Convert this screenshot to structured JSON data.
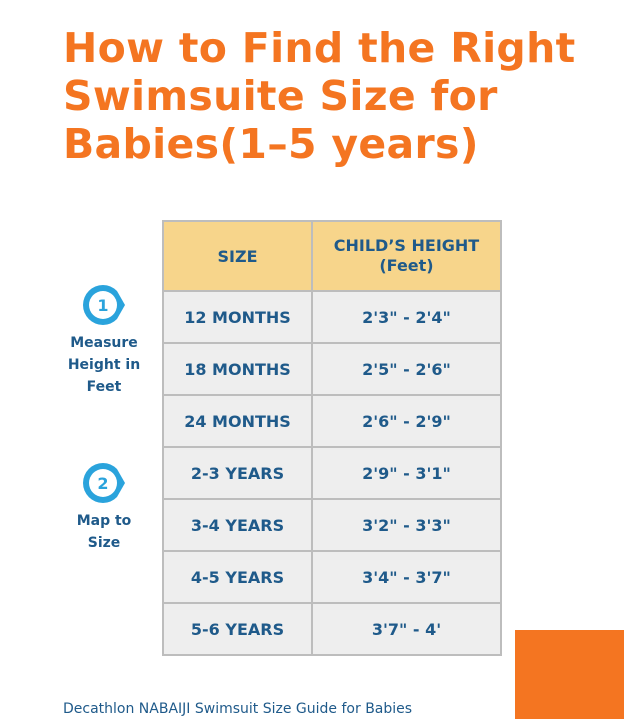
{
  "header": {
    "title_lines": [
      "How to Find the Right",
      "Swimsuite Size for",
      "Babies(1–5 years)"
    ]
  },
  "steps": [
    {
      "number": "1",
      "label": "Measure Height in Feet"
    },
    {
      "number": "2",
      "label": "Map to Size"
    }
  ],
  "table": {
    "columns": [
      "SIZE",
      "CHILD’S HEIGHT (Feet)"
    ],
    "rows": [
      [
        "12 MONTHS",
        "2'3\" - 2'4\""
      ],
      [
        "18 MONTHS",
        "2'5\" - 2'6\""
      ],
      [
        "24 MONTHS",
        "2'6\" - 2'9\""
      ],
      [
        "2-3 YEARS",
        "2'9\" - 3'1\""
      ],
      [
        "3-4 YEARS",
        "3'2\" - 3'3\""
      ],
      [
        "4-5 YEARS",
        "3'4\" - 3'7\""
      ],
      [
        "5-6 YEARS",
        "3'7\" - 4'"
      ]
    ]
  },
  "footer": {
    "caption": "Decathlon NABAIJI Swimsuit Size Guide for Babies"
  }
}
